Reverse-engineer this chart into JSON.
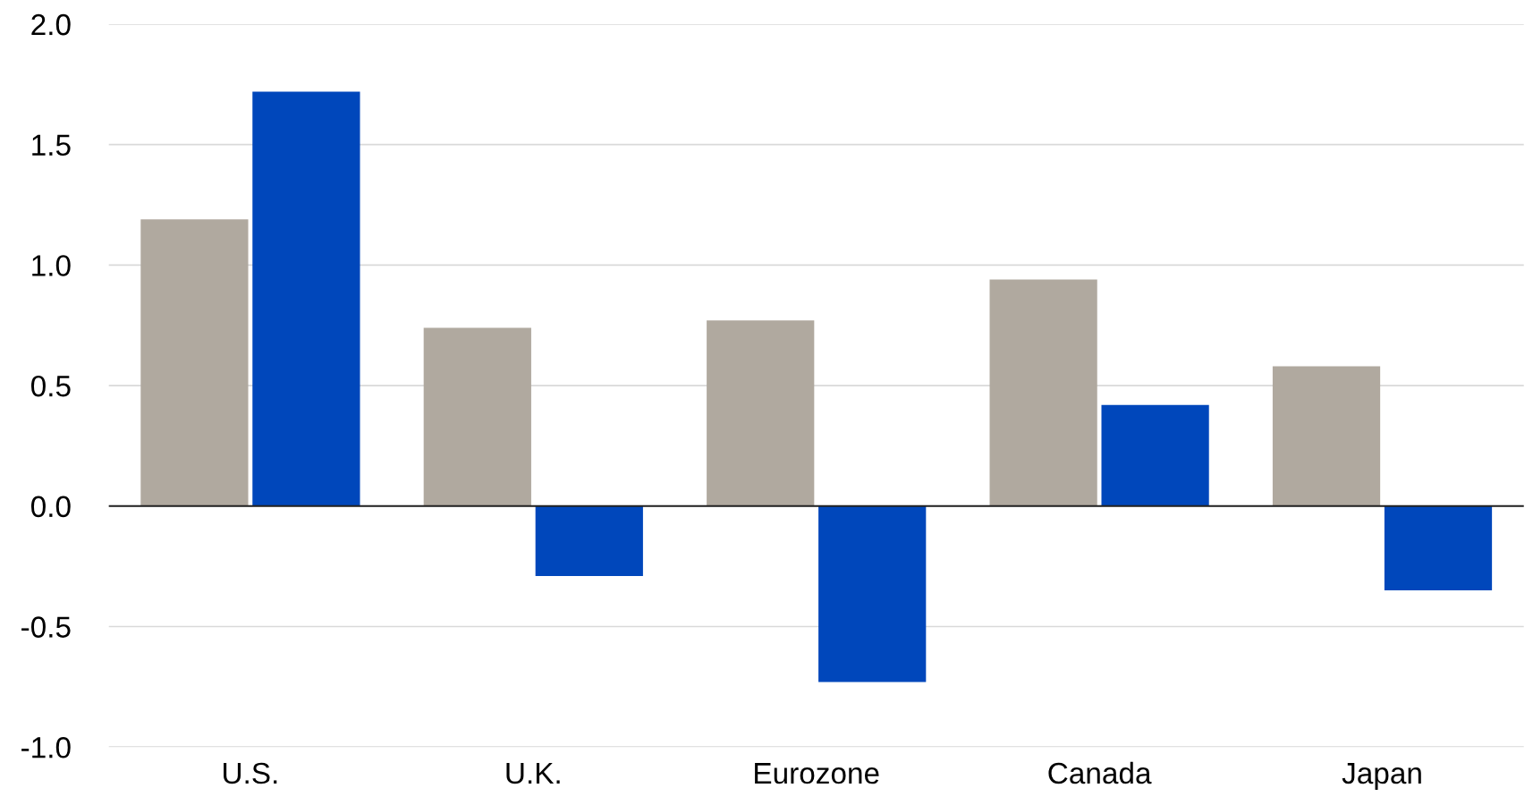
{
  "chart_data": {
    "type": "bar",
    "categories": [
      "U.S.",
      "U.K.",
      "Eurozone",
      "Canada",
      "Japan"
    ],
    "series": [
      {
        "color": "#b0a99f",
        "values": [
          1.19,
          0.74,
          0.77,
          0.94,
          0.58
        ]
      },
      {
        "color": "#0047bb",
        "values": [
          1.72,
          -0.29,
          -0.73,
          0.42,
          -0.35
        ]
      }
    ],
    "ylim": [
      -1.0,
      2.0
    ],
    "yticks": [
      {
        "value": -1.0,
        "label": "-1.0"
      },
      {
        "value": -0.5,
        "label": "-0.5"
      },
      {
        "value": 0,
        "label": "0.0"
      },
      {
        "value": 0.5,
        "label": "0.5"
      },
      {
        "value": 1.0,
        "label": "1.0"
      },
      {
        "value": 1.5,
        "label": "1.5"
      },
      {
        "value": 2.0,
        "label": "2.0"
      }
    ],
    "grid": "y",
    "legend": false,
    "ref_lines": [
      {
        "axis": "y",
        "value": 0,
        "color": "#222222"
      }
    ]
  }
}
